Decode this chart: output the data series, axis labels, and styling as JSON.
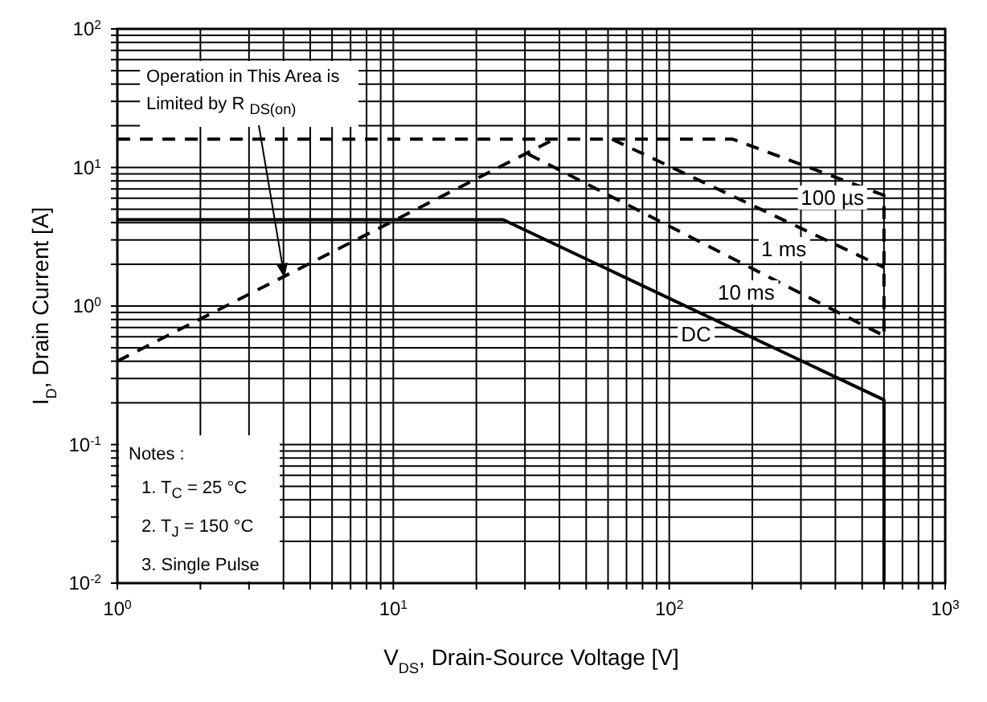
{
  "chart_data": {
    "type": "line",
    "xlabel": "V$_{DS}$, Drain-Source Voltage [V]",
    "ylabel": "I$_{D}$, Drain Current [A]",
    "log": "xy",
    "grid": true,
    "legend": false,
    "marker": "none",
    "xlim": [
      1,
      1000
    ],
    "ylim": [
      0.01,
      100
    ],
    "xticks": [
      {
        "value": 1,
        "label": "10$^{0}$"
      },
      {
        "value": 2,
        "label": null
      },
      {
        "value": 3,
        "label": null
      },
      {
        "value": 4,
        "label": null
      },
      {
        "value": 5,
        "label": null
      },
      {
        "value": 6,
        "label": null
      },
      {
        "value": 7,
        "label": null
      },
      {
        "value": 8,
        "label": null
      },
      {
        "value": 9,
        "label": null
      },
      {
        "value": 10,
        "label": "10$^{1}$"
      },
      {
        "value": 20,
        "label": null
      },
      {
        "value": 30,
        "label": null
      },
      {
        "value": 40,
        "label": null
      },
      {
        "value": 50,
        "label": null
      },
      {
        "value": 60,
        "label": null
      },
      {
        "value": 70,
        "label": null
      },
      {
        "value": 80,
        "label": null
      },
      {
        "value": 90,
        "label": null
      },
      {
        "value": 100,
        "label": "10$^{2}$"
      },
      {
        "value": 200,
        "label": null
      },
      {
        "value": 300,
        "label": null
      },
      {
        "value": 400,
        "label": null
      },
      {
        "value": 500,
        "label": null
      },
      {
        "value": 600,
        "label": null
      },
      {
        "value": 700,
        "label": null
      },
      {
        "value": 800,
        "label": null
      },
      {
        "value": 900,
        "label": null
      },
      {
        "value": 1000,
        "label": "10$^{3}$"
      }
    ],
    "yticks": [
      {
        "value": 0.01,
        "label": "10$^{-2}$"
      },
      {
        "value": 0.02,
        "label": null
      },
      {
        "value": 0.03,
        "label": null
      },
      {
        "value": 0.04,
        "label": null
      },
      {
        "value": 0.05,
        "label": null
      },
      {
        "value": 0.06,
        "label": null
      },
      {
        "value": 0.07,
        "label": null
      },
      {
        "value": 0.08,
        "label": null
      },
      {
        "value": 0.09,
        "label": null
      },
      {
        "value": 0.1,
        "label": "10$^{-1}$"
      },
      {
        "value": 0.2,
        "label": null
      },
      {
        "value": 0.3,
        "label": null
      },
      {
        "value": 0.4,
        "label": null
      },
      {
        "value": 0.5,
        "label": null
      },
      {
        "value": 0.6,
        "label": null
      },
      {
        "value": 0.7,
        "label": null
      },
      {
        "value": 0.8,
        "label": null
      },
      {
        "value": 0.9,
        "label": null
      },
      {
        "value": 1,
        "label": "10$^{0}$"
      },
      {
        "value": 2,
        "label": null
      },
      {
        "value": 3,
        "label": null
      },
      {
        "value": 4,
        "label": null
      },
      {
        "value": 5,
        "label": null
      },
      {
        "value": 6,
        "label": null
      },
      {
        "value": 7,
        "label": null
      },
      {
        "value": 8,
        "label": null
      },
      {
        "value": 9,
        "label": null
      },
      {
        "value": 10,
        "label": "10$^{1}$"
      },
      {
        "value": 20,
        "label": null
      },
      {
        "value": 30,
        "label": null
      },
      {
        "value": 40,
        "label": null
      },
      {
        "value": 50,
        "label": null
      },
      {
        "value": 60,
        "label": null
      },
      {
        "value": 70,
        "label": null
      },
      {
        "value": 80,
        "label": null
      },
      {
        "value": 90,
        "label": null
      },
      {
        "value": 100,
        "label": "10$^{2}$"
      }
    ],
    "series": [
      {
        "color": "#000000",
        "line_style": "dashed",
        "x": [
          1,
          37.6
        ],
        "values": [
          0.4,
          15.7
        ]
      },
      {
        "name": "100 µs",
        "color": "#000000",
        "line_style": "dashed",
        "x": [
          1,
          170,
          600,
          600
        ],
        "values": [
          16,
          16,
          6.3,
          0.61
        ]
      },
      {
        "name": "1 ms",
        "color": "#000000",
        "line_style": "dashed",
        "x": [
          62,
          600
        ],
        "values": [
          16,
          1.9
        ]
      },
      {
        "name": "10 ms",
        "color": "#000000",
        "line_style": "dashed",
        "x": [
          30.8,
          600
        ],
        "values": [
          12.5,
          0.61
        ]
      },
      {
        "name": "DC",
        "color": "#000000",
        "line_style": "solid",
        "x": [
          1,
          25,
          600,
          600
        ],
        "values": [
          4.2,
          4.2,
          0.21,
          0.01
        ]
      }
    ],
    "annotations": [
      "Operation in This Area is Limited by R $_{DS(on)}$",
      "Notes :",
      "1. T$_{C}$ = 25 °C",
      "2. T$_{J}$ = 150 °C",
      "3. Single Pulse"
    ]
  }
}
